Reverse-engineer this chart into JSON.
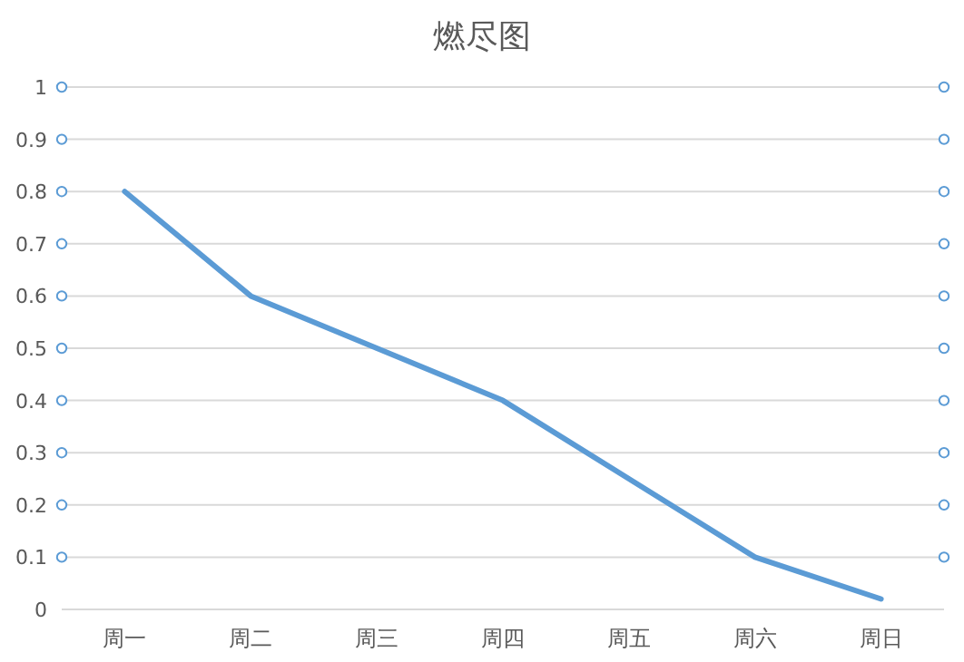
{
  "chart_data": {
    "type": "line",
    "title": "燃尽图",
    "categories": [
      "周一",
      "周二",
      "周三",
      "周四",
      "周五",
      "周六",
      "周日"
    ],
    "series": [
      {
        "color": "#5b9bd5",
        "values": [
          0.8,
          0.6,
          0.5,
          0.4,
          0.25,
          0.1,
          0.02
        ]
      }
    ],
    "ylim": [
      0,
      1
    ],
    "yticks": [
      0,
      0.1,
      0.2,
      0.3,
      0.4,
      0.5,
      0.6,
      0.7,
      0.8,
      0.9,
      1
    ],
    "grid": "y",
    "line_style": "solid"
  }
}
